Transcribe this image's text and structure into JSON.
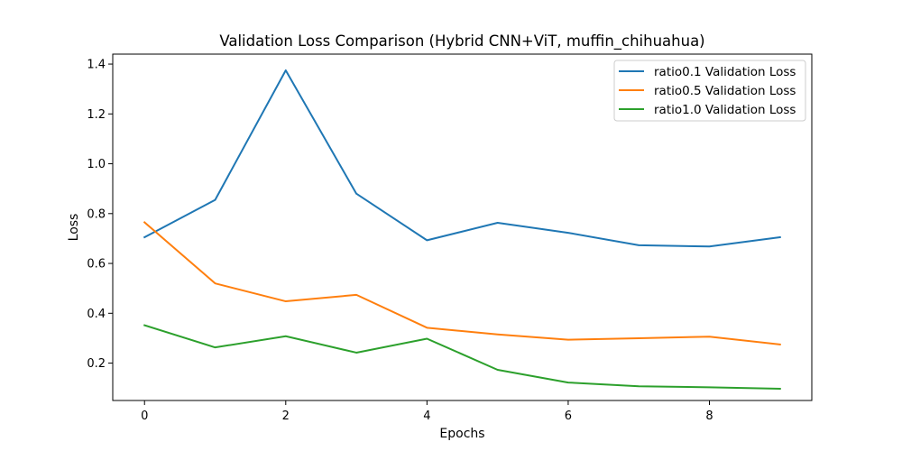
{
  "chart_data": {
    "type": "line",
    "title": "Validation Loss Comparison (Hybrid CNN+ViT, muffin_chihuahua)",
    "xlabel": "Epochs",
    "ylabel": "Loss",
    "x": [
      0,
      1,
      2,
      3,
      4,
      5,
      6,
      7,
      8,
      9
    ],
    "xlim": [
      -0.45,
      9.45
    ],
    "ylim": [
      0.05,
      1.44
    ],
    "xticks": [
      0,
      2,
      4,
      6,
      8
    ],
    "yticks": [
      0.2,
      0.4,
      0.6,
      0.8,
      1.0,
      1.2,
      1.4
    ],
    "ytick_labels": [
      "0.2",
      "0.4",
      "0.6",
      "0.8",
      "1.0",
      "1.2",
      "1.4"
    ],
    "grid": false,
    "legend_position": "top-right",
    "series": [
      {
        "name": "ratio0.1 Validation Loss",
        "color": "#1f77b4",
        "values": [
          0.705,
          0.855,
          1.375,
          0.88,
          0.693,
          0.763,
          0.723,
          0.673,
          0.668,
          0.705
        ]
      },
      {
        "name": "ratio0.5 Validation Loss",
        "color": "#ff7f0e",
        "values": [
          0.765,
          0.52,
          0.448,
          0.474,
          0.342,
          0.315,
          0.294,
          0.3,
          0.306,
          0.275
        ]
      },
      {
        "name": "ratio1.0 Validation Loss",
        "color": "#2ca02c",
        "values": [
          0.352,
          0.263,
          0.308,
          0.242,
          0.298,
          0.173,
          0.122,
          0.107,
          0.103,
          0.097
        ]
      }
    ]
  }
}
